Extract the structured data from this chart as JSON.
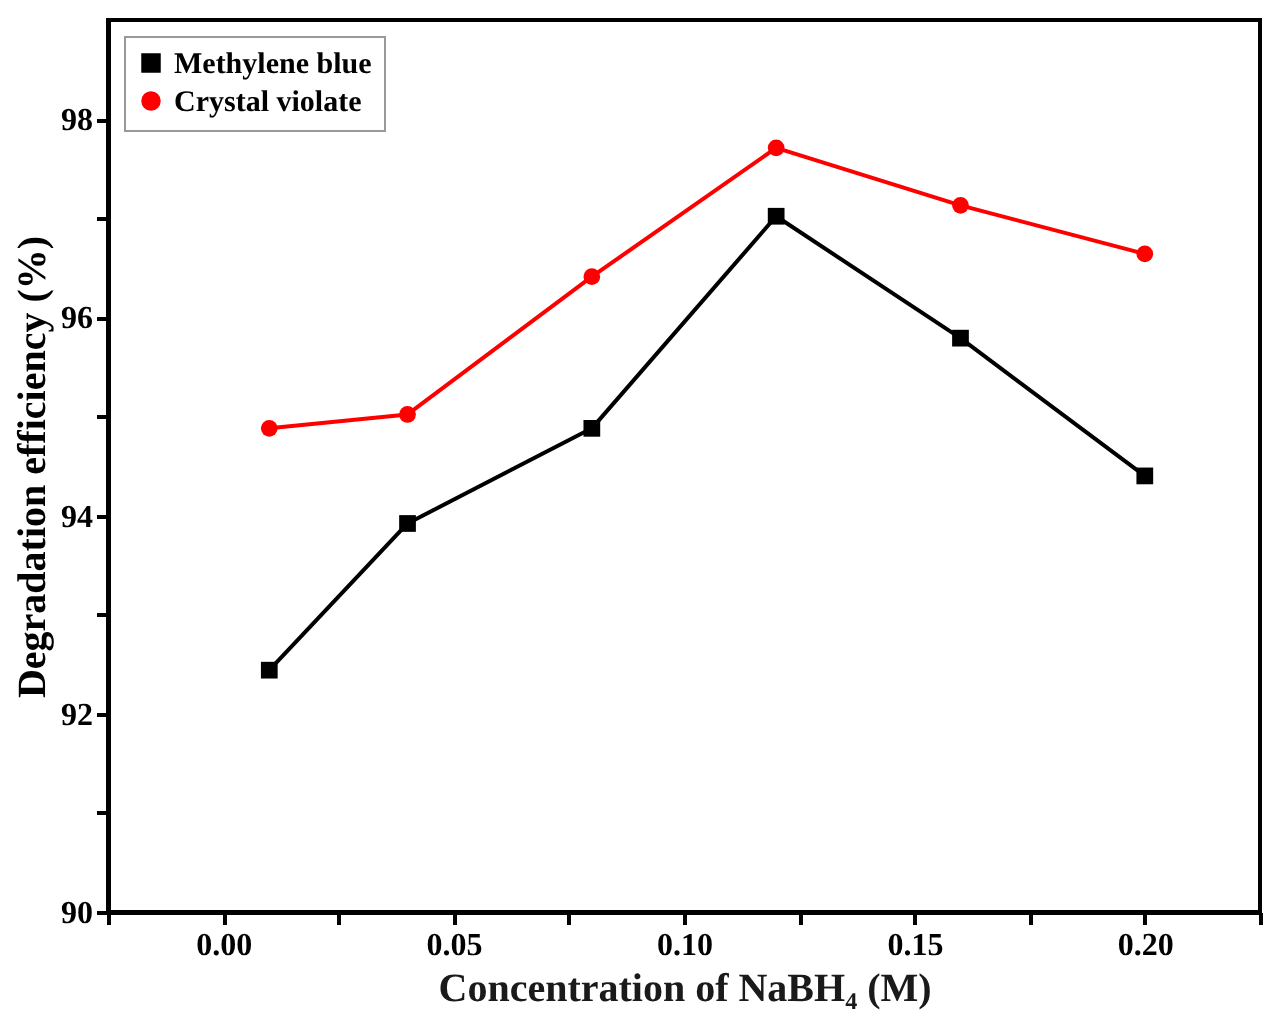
{
  "chart_data": {
    "type": "line",
    "xlabel": "Concentration of NaBH₄ (M)",
    "ylabel": "Degradation efficiency (%)",
    "x": [
      0.01,
      0.04,
      0.08,
      0.12,
      0.16,
      0.2
    ],
    "series": [
      {
        "name": "Methylene blue",
        "color": "#000000",
        "marker": "square",
        "values": [
          92.44,
          93.92,
          94.88,
          97.02,
          95.79,
          94.4
        ]
      },
      {
        "name": "Crystal violate",
        "color": "#ff0000",
        "marker": "circle",
        "values": [
          94.88,
          95.02,
          96.41,
          97.71,
          97.13,
          96.64
        ]
      }
    ],
    "xlim": [
      -0.025,
      0.225
    ],
    "xticks": [
      {
        "value": -0.025,
        "label": null
      },
      {
        "value": 0,
        "label": "0.00"
      },
      {
        "value": 0.025,
        "label": null
      },
      0.05,
      {
        "value": 0.075,
        "label": null
      },
      {
        "value": 0.1,
        "label": "0.10"
      },
      {
        "value": 0.125,
        "label": null
      },
      0.15,
      {
        "value": 0.175,
        "label": null
      },
      {
        "value": 0.2,
        "label": "0.20"
      },
      {
        "value": 0.225,
        "label": null
      }
    ],
    "ylim": [
      90,
      99
    ],
    "yticks": [
      90,
      {
        "value": 91,
        "label": null
      },
      92,
      {
        "value": 93,
        "label": null
      },
      94,
      {
        "value": 95,
        "label": null
      },
      96,
      {
        "value": 97,
        "label": null
      },
      98
    ],
    "grid": false,
    "legend": "top left",
    "line_style": "solid"
  }
}
